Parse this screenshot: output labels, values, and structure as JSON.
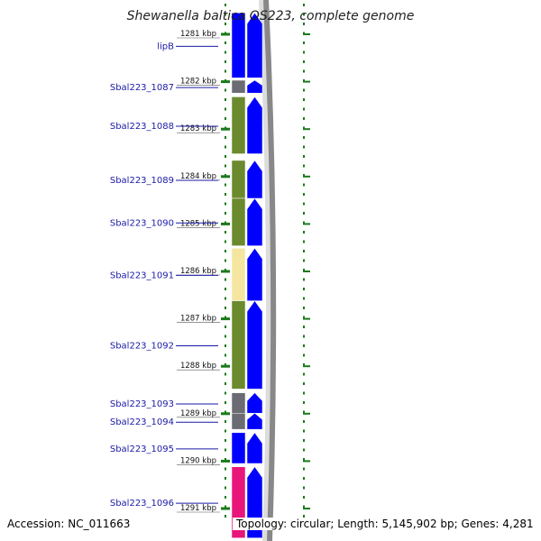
{
  "title": "Shewanella baltica OS223, complete genome",
  "footer": {
    "accession": "Accession: NC_011663",
    "summary": "Topology: circular; Length: 5,145,902 bp; Genes: 4,281"
  },
  "colors": {
    "background": "#ffffff",
    "cds": "#0000ff",
    "gene_default": "#0000ff",
    "gene_other": "#6b6b73",
    "gene_olive": "#6b8a2e",
    "gene_pale": "#f4e6a0",
    "gene_magenta": "#e8157a",
    "tick": "#1a7a1a",
    "label": "#1a1aa6",
    "backbone": "#888888"
  },
  "ruler": [
    {
      "label": "1281 kbp",
      "kbp": 1281
    },
    {
      "label": "1282 kbp",
      "kbp": 1282
    },
    {
      "label": "1283 kbp",
      "kbp": 1283
    },
    {
      "label": "1284 kbp",
      "kbp": 1284
    },
    {
      "label": "1285 kbp",
      "kbp": 1285
    },
    {
      "label": "1286 kbp",
      "kbp": 1286
    },
    {
      "label": "1287 kbp",
      "kbp": 1287
    },
    {
      "label": "1288 kbp",
      "kbp": 1288
    },
    {
      "label": "1289 kbp",
      "kbp": 1289
    },
    {
      "label": "1290 kbp",
      "kbp": 1290
    },
    {
      "label": "1291 kbp",
      "kbp": 1291
    }
  ],
  "genes": [
    {
      "label": "lipB",
      "start_kbp": 1280.55,
      "end_kbp": 1281.92,
      "category": "gene_default"
    },
    {
      "label": "Sbal223_1087",
      "start_kbp": 1281.97,
      "end_kbp": 1282.24,
      "category": "gene_other"
    },
    {
      "label": "Sbal223_1088",
      "start_kbp": 1282.32,
      "end_kbp": 1283.52,
      "category": "gene_olive"
    },
    {
      "label": "Sbal223_1089",
      "start_kbp": 1283.66,
      "end_kbp": 1284.46,
      "category": "gene_olive"
    },
    {
      "label": "Sbal223_1090",
      "start_kbp": 1284.46,
      "end_kbp": 1285.46,
      "category": "gene_olive"
    },
    {
      "label": "Sbal223_1091",
      "start_kbp": 1285.51,
      "end_kbp": 1286.62,
      "category": "gene_pale"
    },
    {
      "label": "Sbal223_1092",
      "start_kbp": 1286.62,
      "end_kbp": 1288.48,
      "category": "gene_olive"
    },
    {
      "label": "Sbal223_1093",
      "start_kbp": 1288.56,
      "end_kbp": 1288.99,
      "category": "gene_other"
    },
    {
      "label": "Sbal223_1094",
      "start_kbp": 1288.99,
      "end_kbp": 1289.33,
      "category": "gene_other"
    },
    {
      "label": "Sbal223_1095",
      "start_kbp": 1289.4,
      "end_kbp": 1290.05,
      "category": "gene_default"
    },
    {
      "label": "Sbal223_1096",
      "start_kbp": 1290.12,
      "end_kbp": 1291.62,
      "category": "gene_magenta"
    }
  ]
}
